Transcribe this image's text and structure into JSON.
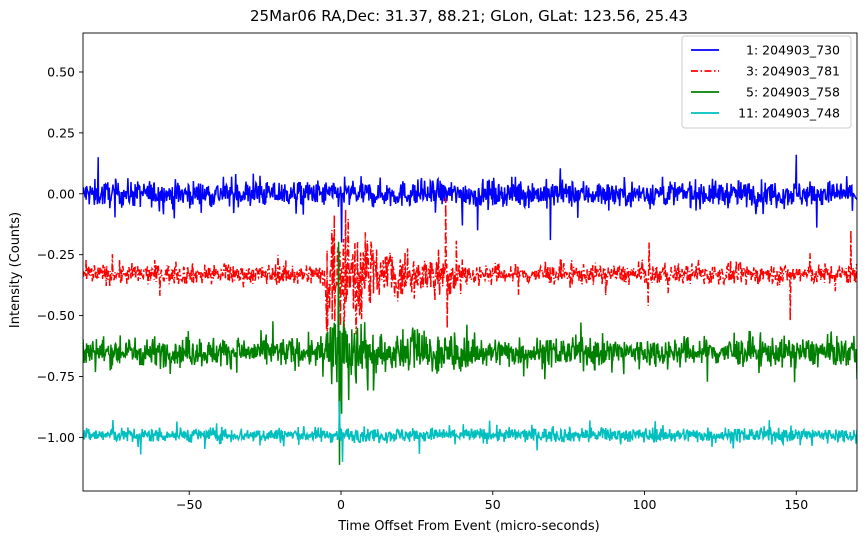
{
  "chart_data": {
    "type": "line",
    "title": "25Mar06 RA,Dec:   31.37,  88.21; GLon, GLat:  123.56,  25.43",
    "xlabel": "Time Offset From Event (micro-seconds)",
    "ylabel": "Intensity (Counts)",
    "xlim": [
      -85,
      170
    ],
    "ylim": [
      -1.22,
      0.66
    ],
    "xticks": [
      -50,
      0,
      50,
      100,
      150
    ],
    "xtick_labels": [
      "−50",
      "0",
      "50",
      "100",
      "150"
    ],
    "yticks": [
      -1.0,
      -0.75,
      -0.5,
      -0.25,
      0.0,
      0.25,
      0.5
    ],
    "ytick_labels": [
      "−1.00",
      "−0.75",
      "−0.50",
      "−0.25",
      "0.00",
      "0.25",
      "0.50"
    ],
    "legend_position": "upper right",
    "series": [
      {
        "name": "1: 204903_730",
        "color": "#0000ff",
        "style": "solid",
        "baseline": 0.0,
        "noise": 0.045,
        "spikes": [
          {
            "x": 0.2,
            "y": -0.2
          },
          {
            "x": 1.2,
            "y": 0.07
          },
          {
            "x": 45.0,
            "y": -0.15
          },
          {
            "x": 69.0,
            "y": -0.19
          },
          {
            "x": 150.0,
            "y": 0.16
          },
          {
            "x": -80.0,
            "y": 0.15
          },
          {
            "x": 40.0,
            "y": -0.13
          }
        ]
      },
      {
        "name": "3: 204903_781",
        "color": "#ff0000",
        "style": "dashdot",
        "baseline": -0.33,
        "noise": 0.035,
        "spikes": [
          {
            "x": -4.5,
            "y": -0.52
          },
          {
            "x": -3.0,
            "y": -0.15
          },
          {
            "x": 1.5,
            "y": -0.01
          },
          {
            "x": 1.0,
            "y": -0.6
          },
          {
            "x": 34.5,
            "y": 0.02
          },
          {
            "x": 35.0,
            "y": -0.53
          },
          {
            "x": 38.0,
            "y": -0.16
          },
          {
            "x": 5.0,
            "y": -0.55
          },
          {
            "x": 101.5,
            "y": -0.2
          },
          {
            "x": 101.2,
            "y": -0.46
          },
          {
            "x": 148.0,
            "y": -0.52
          },
          {
            "x": 168.0,
            "y": -0.15
          }
        ]
      },
      {
        "name": "5: 204903_758",
        "color": "#008000",
        "style": "solid",
        "baseline": -0.65,
        "noise": 0.05,
        "spikes": [
          {
            "x": -0.8,
            "y": -0.2
          },
          {
            "x": -0.5,
            "y": -1.12
          },
          {
            "x": 0.2,
            "y": -0.85
          },
          {
            "x": 5.0,
            "y": -0.78
          }
        ]
      },
      {
        "name": "11: 204903_748",
        "color": "#00bfbf",
        "style": "solid",
        "baseline": -0.99,
        "noise": 0.025,
        "spikes": [
          {
            "x": -0.5,
            "y": -0.85
          },
          {
            "x": 0.5,
            "y": -1.1
          },
          {
            "x": -66.0,
            "y": -1.07
          },
          {
            "x": 82.0,
            "y": -0.93
          }
        ]
      }
    ]
  }
}
